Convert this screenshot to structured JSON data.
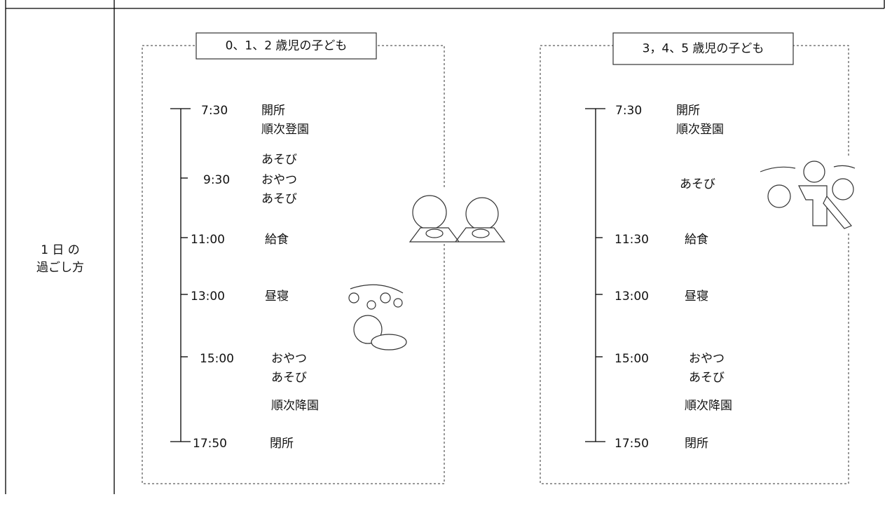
{
  "table": {
    "row_header": [
      "1 日 の",
      "過ごし方"
    ],
    "groups": [
      {
        "title": "0、1、2 歳児の子ども",
        "schedule": [
          {
            "time": "7:30",
            "lines": [
              "開所",
              "順次登園"
            ]
          },
          {
            "lines": [
              "あそび"
            ]
          },
          {
            "time": "9:30",
            "lines": [
              "おやつ",
              "あそび"
            ]
          },
          {
            "time": "11:00",
            "lines": [
              "給食"
            ]
          },
          {
            "time": "13:00",
            "lines": [
              "昼寝"
            ]
          },
          {
            "time": "15:00",
            "lines": [
              "おやつ",
              "あそび"
            ]
          },
          {
            "lines": [
              "順次降園"
            ]
          },
          {
            "time": "17:50",
            "lines": [
              "閉所"
            ]
          }
        ]
      },
      {
        "title": "3，4、5 歳児の子ども",
        "schedule": [
          {
            "time": "7:30",
            "lines": [
              "開所",
              "順次登園"
            ]
          },
          {
            "lines": [
              "あそび"
            ]
          },
          {
            "time": "11:30",
            "lines": [
              "給食"
            ]
          },
          {
            "time": "13:00",
            "lines": [
              "昼寝"
            ]
          },
          {
            "time": "15:00",
            "lines": [
              "おやつ",
              "あそび"
            ]
          },
          {
            "lines": [
              "順次降園"
            ]
          },
          {
            "time": "17:50",
            "lines": [
              "閉所"
            ]
          }
        ]
      }
    ]
  }
}
